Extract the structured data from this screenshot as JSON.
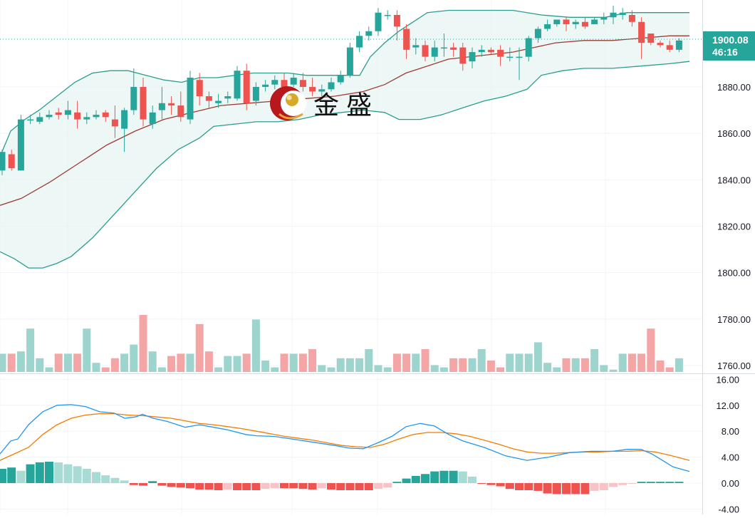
{
  "chart_data": [
    {
      "type": "candlestick",
      "panel": "price",
      "overlays": [
        "Bollinger Bands (upper, middle, lower)",
        "Volume histogram"
      ],
      "y_ticks": [
        "1880.00",
        "1860.00",
        "1840.00",
        "1820.00",
        "1800.00",
        "1780.00",
        "1760.00"
      ],
      "ylim": [
        1757,
        1915
      ],
      "last_price": "1900.08",
      "countdown": "46:16",
      "candles": [
        [
          1844,
          1852,
          1842,
          1853
        ],
        [
          1851,
          1845,
          1844,
          1853
        ],
        [
          1844,
          1866,
          1844,
          1868
        ],
        [
          1866,
          1866,
          1864,
          1868
        ],
        [
          1865,
          1867,
          1864,
          1869
        ],
        [
          1867,
          1868,
          1866,
          1870
        ],
        [
          1869,
          1868,
          1866,
          1871
        ],
        [
          1868,
          1870,
          1866,
          1874
        ],
        [
          1869,
          1866,
          1862,
          1874
        ],
        [
          1866,
          1867,
          1864,
          1869
        ],
        [
          1867,
          1868,
          1866,
          1870
        ],
        [
          1869,
          1867,
          1865,
          1870
        ],
        [
          1866,
          1863,
          1858,
          1872
        ],
        [
          1862,
          1870,
          1852,
          1871
        ],
        [
          1870,
          1880,
          1868,
          1888
        ],
        [
          1880,
          1866,
          1863,
          1884
        ],
        [
          1864,
          1869,
          1862,
          1872
        ],
        [
          1870,
          1873,
          1866,
          1880
        ],
        [
          1873,
          1872,
          1868,
          1876
        ],
        [
          1872,
          1867,
          1865,
          1878
        ],
        [
          1866,
          1884,
          1864,
          1887
        ],
        [
          1883,
          1876,
          1872,
          1886
        ],
        [
          1876,
          1874,
          1871,
          1878
        ],
        [
          1873,
          1874,
          1871,
          1877
        ],
        [
          1875,
          1876,
          1873,
          1878
        ],
        [
          1875,
          1887,
          1874,
          1889
        ],
        [
          1887,
          1873,
          1870,
          1890
        ],
        [
          1874,
          1880,
          1872,
          1882
        ],
        [
          1880,
          1881,
          1878,
          1883
        ],
        [
          1881,
          1883,
          1879,
          1885
        ],
        [
          1883,
          1880,
          1878,
          1886
        ],
        [
          1881,
          1884,
          1880,
          1886
        ],
        [
          1883,
          1880,
          1878,
          1886
        ],
        [
          1880,
          1878,
          1876,
          1884
        ],
        [
          1878,
          1879,
          1876,
          1881
        ],
        [
          1879,
          1882,
          1878,
          1884
        ],
        [
          1882,
          1885,
          1881,
          1887
        ],
        [
          1885,
          1897,
          1884,
          1899
        ],
        [
          1897,
          1902,
          1895,
          1904
        ],
        [
          1902,
          1904,
          1900,
          1906
        ],
        [
          1904,
          1912,
          1902,
          1914
        ],
        [
          1911,
          1911,
          1909,
          1913
        ],
        [
          1911,
          1906,
          1900,
          1913
        ],
        [
          1905,
          1896,
          1892,
          1907
        ],
        [
          1897,
          1898,
          1894,
          1901
        ],
        [
          1898,
          1893,
          1891,
          1900
        ],
        [
          1893,
          1897,
          1891,
          1900
        ],
        [
          1897,
          1897,
          1893,
          1903
        ],
        [
          1897,
          1896,
          1893,
          1899
        ],
        [
          1897,
          1890,
          1887,
          1899
        ],
        [
          1891,
          1895,
          1888,
          1897
        ],
        [
          1895,
          1896,
          1893,
          1898
        ],
        [
          1896,
          1895,
          1894,
          1897
        ],
        [
          1896,
          1893,
          1889,
          1898
        ],
        [
          1893,
          1893,
          1891,
          1897
        ],
        [
          1893,
          1893,
          1883,
          1897
        ],
        [
          1893,
          1901,
          1891,
          1902
        ],
        [
          1901,
          1905,
          1899,
          1906
        ],
        [
          1905,
          1907,
          1904,
          1909
        ],
        [
          1907,
          1909,
          1906,
          1909
        ],
        [
          1909,
          1907,
          1904,
          1910
        ],
        [
          1907,
          1908,
          1905,
          1909
        ],
        [
          1908,
          1906,
          1905,
          1910
        ],
        [
          1907,
          1909,
          1907,
          1910
        ],
        [
          1909,
          1910,
          1907,
          1912
        ],
        [
          1910,
          1912,
          1907,
          1915
        ],
        [
          1911,
          1912,
          1909,
          1914
        ],
        [
          1911,
          1908,
          1906,
          1913
        ],
        [
          1908,
          1899,
          1892,
          1910
        ],
        [
          1903,
          1899,
          1898,
          1903
        ],
        [
          1899,
          1898,
          1897,
          1900
        ],
        [
          1898,
          1896,
          1895,
          1900
        ],
        [
          1896,
          1900,
          1895,
          1901
        ]
      ],
      "volume": [
        8,
        8,
        9,
        19,
        6,
        2,
        8,
        8,
        8,
        19,
        4,
        2,
        6,
        8,
        12,
        25,
        9,
        2,
        7,
        8,
        8,
        21,
        9,
        2,
        7,
        7,
        8,
        23,
        5,
        2,
        8,
        8,
        8,
        10,
        3,
        2,
        6,
        6,
        6,
        10,
        3,
        2,
        8,
        8,
        8,
        10,
        3,
        2,
        6,
        6,
        6,
        10,
        5,
        2,
        8,
        8,
        8,
        13,
        4,
        2,
        6,
        6,
        6,
        10,
        3,
        1,
        8,
        8,
        8,
        19,
        5,
        2,
        6
      ],
      "bollinger_upper": [
        [
          0,
          1850
        ],
        [
          15,
          1861
        ],
        [
          35,
          1866
        ],
        [
          55,
          1870
        ],
        [
          80,
          1876
        ],
        [
          105,
          1882
        ],
        [
          130,
          1886
        ],
        [
          155,
          1887
        ],
        [
          180,
          1887
        ],
        [
          205,
          1885
        ],
        [
          230,
          1883
        ],
        [
          255,
          1882
        ],
        [
          280,
          1884
        ],
        [
          305,
          1884
        ],
        [
          330,
          1885
        ],
        [
          355,
          1886
        ],
        [
          380,
          1886
        ],
        [
          405,
          1886
        ],
        [
          430,
          1885
        ],
        [
          455,
          1885
        ],
        [
          480,
          1885
        ],
        [
          505,
          1885
        ],
        [
          520,
          1893
        ],
        [
          540,
          1899
        ],
        [
          560,
          1904
        ],
        [
          580,
          1908
        ],
        [
          600,
          1912
        ],
        [
          630,
          1913
        ],
        [
          660,
          1913
        ],
        [
          690,
          1913
        ],
        [
          720,
          1913
        ],
        [
          760,
          1911
        ],
        [
          800,
          1910
        ],
        [
          850,
          1910
        ],
        [
          880,
          1912
        ],
        [
          910,
          1912
        ],
        [
          940,
          1912
        ],
        [
          968,
          1912
        ]
      ],
      "bollinger_middle": [
        [
          0,
          1829
        ],
        [
          30,
          1832
        ],
        [
          70,
          1839
        ],
        [
          110,
          1847
        ],
        [
          150,
          1855
        ],
        [
          190,
          1861
        ],
        [
          230,
          1866
        ],
        [
          270,
          1869
        ],
        [
          310,
          1872
        ],
        [
          350,
          1873
        ],
        [
          390,
          1874
        ],
        [
          430,
          1875
        ],
        [
          470,
          1876
        ],
        [
          510,
          1878
        ],
        [
          540,
          1881
        ],
        [
          570,
          1886
        ],
        [
          600,
          1889
        ],
        [
          630,
          1892
        ],
        [
          660,
          1893
        ],
        [
          690,
          1894
        ],
        [
          720,
          1895
        ],
        [
          750,
          1897
        ],
        [
          780,
          1899
        ],
        [
          820,
          1900
        ],
        [
          860,
          1900
        ],
        [
          900,
          1901
        ],
        [
          940,
          1902
        ],
        [
          968,
          1902
        ]
      ],
      "bollinger_lower": [
        [
          0,
          1809
        ],
        [
          20,
          1806
        ],
        [
          40,
          1802
        ],
        [
          60,
          1802
        ],
        [
          80,
          1804
        ],
        [
          100,
          1807
        ],
        [
          130,
          1815
        ],
        [
          160,
          1825
        ],
        [
          190,
          1835
        ],
        [
          220,
          1845
        ],
        [
          250,
          1853
        ],
        [
          280,
          1858
        ],
        [
          300,
          1863
        ],
        [
          330,
          1864
        ],
        [
          360,
          1865
        ],
        [
          390,
          1865
        ],
        [
          420,
          1866
        ],
        [
          450,
          1868
        ],
        [
          480,
          1869
        ],
        [
          510,
          1870
        ],
        [
          540,
          1869
        ],
        [
          560,
          1866
        ],
        [
          590,
          1866
        ],
        [
          620,
          1868
        ],
        [
          650,
          1871
        ],
        [
          680,
          1874
        ],
        [
          710,
          1876
        ],
        [
          740,
          1879
        ],
        [
          760,
          1885
        ],
        [
          790,
          1887
        ],
        [
          820,
          1888
        ],
        [
          860,
          1888
        ],
        [
          900,
          1889
        ],
        [
          940,
          1890
        ],
        [
          968,
          1891
        ]
      ]
    },
    {
      "type": "macd",
      "panel": "indicator",
      "y_ticks": [
        "16.00",
        "12.00",
        "8.00",
        "4.00",
        "0.00",
        "-4.00"
      ],
      "ylim": [
        -4,
        16
      ],
      "macd_line": [
        [
          0,
          4.5
        ],
        [
          15,
          6.5
        ],
        [
          25,
          6.8
        ],
        [
          40,
          9
        ],
        [
          60,
          11
        ],
        [
          80,
          12
        ],
        [
          100,
          12.1
        ],
        [
          120,
          11.8
        ],
        [
          140,
          11
        ],
        [
          160,
          10.8
        ],
        [
          175,
          10
        ],
        [
          190,
          10.2
        ],
        [
          200,
          10.6
        ],
        [
          215,
          10
        ],
        [
          235,
          9.5
        ],
        [
          260,
          8.6
        ],
        [
          280,
          9
        ],
        [
          300,
          8.6
        ],
        [
          320,
          8.2
        ],
        [
          345,
          7.5
        ],
        [
          360,
          7.3
        ],
        [
          385,
          7.2
        ],
        [
          410,
          6.8
        ],
        [
          440,
          6.3
        ],
        [
          470,
          5.8
        ],
        [
          490,
          5.4
        ],
        [
          510,
          5.3
        ],
        [
          530,
          6.2
        ],
        [
          550,
          7.2
        ],
        [
          570,
          8.7
        ],
        [
          590,
          9.2
        ],
        [
          610,
          8.8
        ],
        [
          630,
          7.5
        ],
        [
          650,
          6.5
        ],
        [
          680,
          5.5
        ],
        [
          710,
          4.2
        ],
        [
          740,
          3.5
        ],
        [
          770,
          4
        ],
        [
          800,
          4.7
        ],
        [
          830,
          4.9
        ],
        [
          860,
          4.9
        ],
        [
          880,
          5.2
        ],
        [
          900,
          5.2
        ],
        [
          915,
          4.5
        ],
        [
          930,
          3.5
        ],
        [
          945,
          2.5
        ],
        [
          968,
          1.8
        ]
      ],
      "signal_line": [
        [
          0,
          3.5
        ],
        [
          20,
          4.5
        ],
        [
          40,
          5.5
        ],
        [
          60,
          7.5
        ],
        [
          80,
          9
        ],
        [
          100,
          10
        ],
        [
          120,
          10.5
        ],
        [
          140,
          10.7
        ],
        [
          160,
          10.7
        ],
        [
          180,
          10.5
        ],
        [
          200,
          10.4
        ],
        [
          220,
          10.2
        ],
        [
          240,
          10
        ],
        [
          260,
          9.6
        ],
        [
          280,
          9.2
        ],
        [
          300,
          9
        ],
        [
          320,
          8.7
        ],
        [
          340,
          8.4
        ],
        [
          360,
          8
        ],
        [
          380,
          7.6
        ],
        [
          400,
          7.2
        ],
        [
          420,
          6.9
        ],
        [
          440,
          6.6
        ],
        [
          460,
          6.2
        ],
        [
          480,
          5.8
        ],
        [
          500,
          5.6
        ],
        [
          520,
          5.5
        ],
        [
          540,
          6
        ],
        [
          560,
          6.8
        ],
        [
          580,
          7.5
        ],
        [
          600,
          7.8
        ],
        [
          620,
          7.8
        ],
        [
          640,
          7.6
        ],
        [
          660,
          7.2
        ],
        [
          680,
          6.6
        ],
        [
          700,
          6
        ],
        [
          720,
          5.3
        ],
        [
          740,
          4.8
        ],
        [
          760,
          4.6
        ],
        [
          780,
          4.6
        ],
        [
          800,
          4.7
        ],
        [
          820,
          4.8
        ],
        [
          840,
          4.8
        ],
        [
          860,
          4.9
        ],
        [
          880,
          4.9
        ],
        [
          900,
          5
        ],
        [
          920,
          4.8
        ],
        [
          940,
          4.3
        ],
        [
          968,
          3.5
        ]
      ],
      "histogram": [
        2.2,
        2.4,
        1.9,
        2.9,
        3.2,
        3.3,
        3.2,
        2.9,
        2.6,
        2.2,
        1.7,
        1.2,
        0.8,
        0.4,
        -0.3,
        -0.4,
        0.3,
        -0.4,
        -0.6,
        -0.7,
        -0.8,
        -1.0,
        -1.0,
        -1.1,
        -1.0,
        -1.1,
        -1.1,
        -1.1,
        -0.9,
        -0.8,
        -0.8,
        -0.8,
        -0.9,
        -1.0,
        -0.8,
        -1.0,
        -1.1,
        -1.1,
        -1.1,
        -1.1,
        -0.9,
        -0.7,
        0.2,
        0.7,
        1.1,
        1.4,
        1.8,
        1.9,
        1.9,
        1.8,
        1.0,
        -0.1,
        -0.3,
        -0.5,
        -0.9,
        -1.1,
        -1.1,
        -1.2,
        -1.6,
        -1.7,
        -1.7,
        -1.7,
        -1.7,
        -1.2,
        -1.1,
        -0.6,
        -0.3,
        -0.1,
        0.2,
        0.2,
        0.2,
        0.2,
        0.2
      ]
    }
  ],
  "watermark": {
    "text": "金 盛"
  },
  "colors": {
    "up": "#26a69a",
    "down": "#ef5350",
    "vol_up": "#9ed4ce",
    "vol_down": "#f4a5a6",
    "band_line": "#2a9d8f",
    "band_fill": "#e6f4f1",
    "middle_line": "#9c3d33",
    "macd_line": "#2196f3",
    "signal_line": "#f57c00",
    "hist_up_strong": "#26a69a",
    "hist_up_weak": "#a9dbd5",
    "hist_down_strong": "#ef5350",
    "hist_down_weak": "#f8c3c6",
    "price_tag_bg": "#26a69a"
  }
}
